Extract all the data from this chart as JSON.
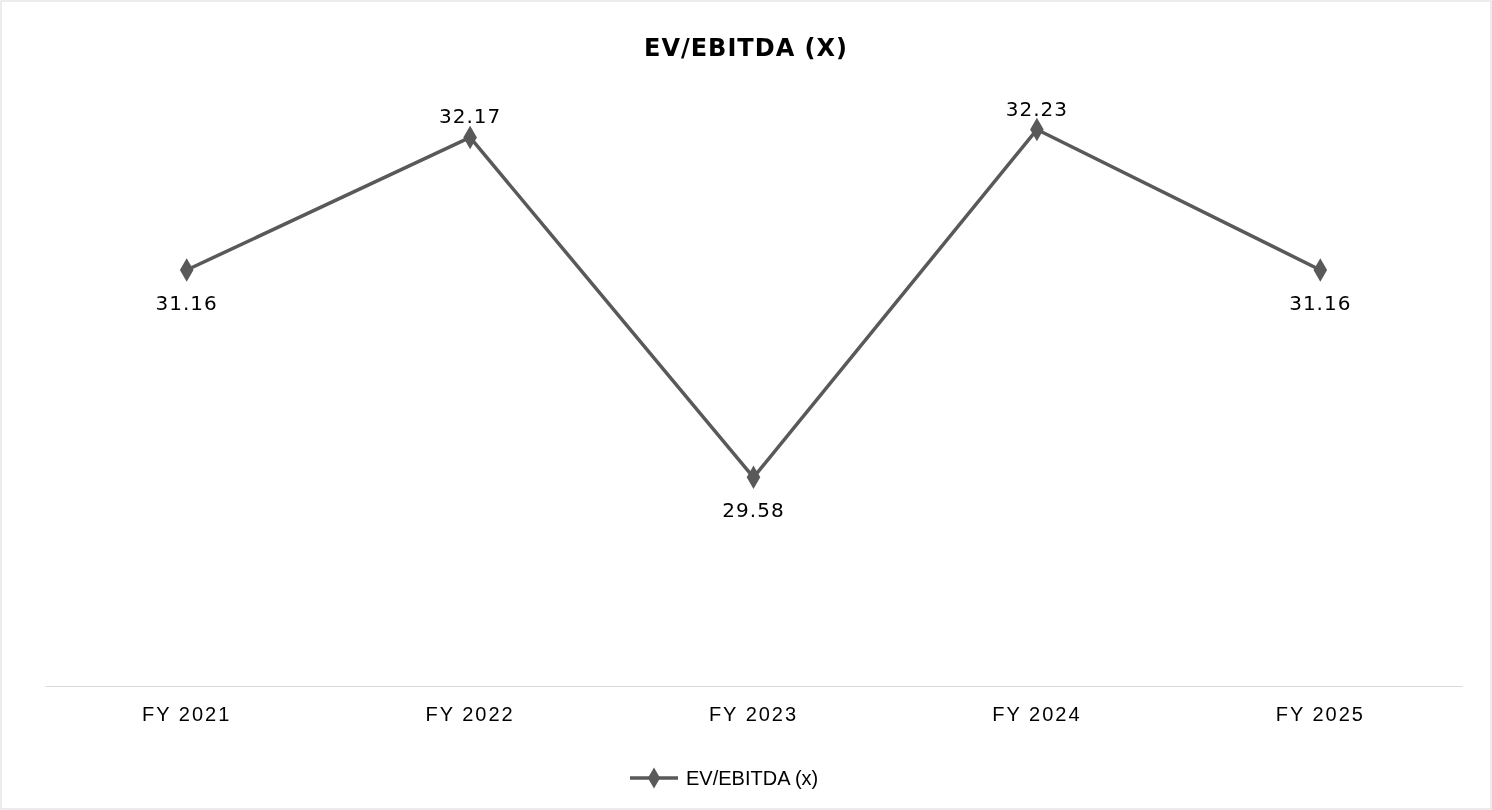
{
  "chart_data": {
    "type": "line",
    "title": "EV/EBITDA (X)",
    "categories": [
      "FY 2021",
      "FY 2022",
      "FY 2023",
      "FY 2024",
      "FY 2025"
    ],
    "series": [
      {
        "name": "EV/EBITDA (x)",
        "color": "#595959",
        "values": [
          31.16,
          32.17,
          29.58,
          32.23,
          31.16
        ]
      }
    ],
    "data_labels": true,
    "marker": "diamond",
    "line_style": "solid",
    "legend": "bottom"
  }
}
